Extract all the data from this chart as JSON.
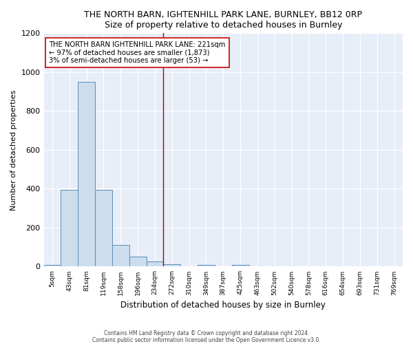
{
  "title": "THE NORTH BARN, IGHTENHILL PARK LANE, BURNLEY, BB12 0RP",
  "subtitle": "Size of property relative to detached houses in Burnley",
  "xlabel": "Distribution of detached houses by size in Burnley",
  "ylabel": "Number of detached properties",
  "bar_labels": [
    "5sqm",
    "43sqm",
    "81sqm",
    "119sqm",
    "158sqm",
    "196sqm",
    "234sqm",
    "272sqm",
    "310sqm",
    "349sqm",
    "387sqm",
    "425sqm",
    "463sqm",
    "502sqm",
    "540sqm",
    "578sqm",
    "616sqm",
    "654sqm",
    "693sqm",
    "731sqm",
    "769sqm"
  ],
  "bar_values": [
    10,
    395,
    950,
    395,
    110,
    50,
    25,
    12,
    0,
    10,
    0,
    10,
    0,
    0,
    0,
    0,
    0,
    0,
    0,
    0,
    0
  ],
  "bar_color": "#ccdded",
  "bar_edge_color": "#5b8db8",
  "vline_x": 6.5,
  "vline_color": "#aa0000",
  "annotation_text": "THE NORTH BARN IGHTENHILL PARK LANE: 221sqm\n← 97% of detached houses are smaller (1,873)\n3% of semi-detached houses are larger (53) →",
  "annotation_box_color": "white",
  "annotation_box_edge_color": "#cc0000",
  "ylim": [
    0,
    1200
  ],
  "yticks": [
    0,
    200,
    400,
    600,
    800,
    1000,
    1200
  ],
  "footnote1": "Contains HM Land Registry data © Crown copyright and database right 2024.",
  "footnote2": "Contains public sector information licensed under the Open Government Licence v3.0.",
  "bg_color": "#ffffff",
  "plot_bg_color": "#e8eef8"
}
